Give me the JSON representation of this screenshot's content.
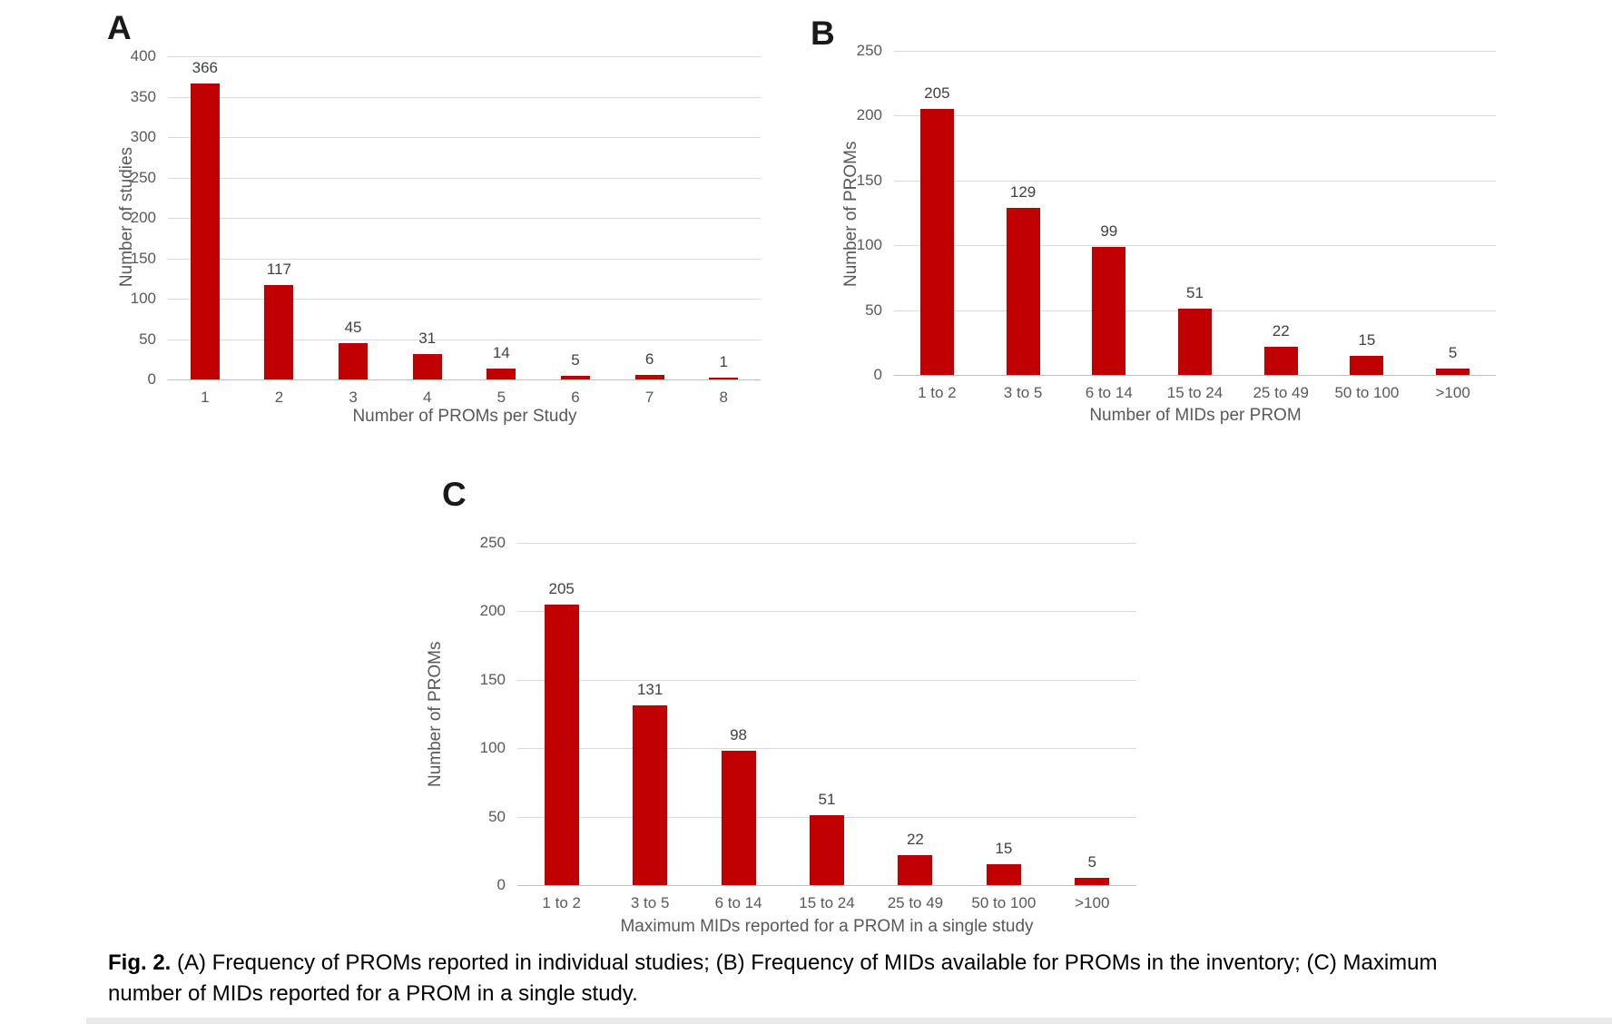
{
  "caption": {
    "label": "Fig. 2.",
    "text": "(A) Frequency of PROMs reported in individual studies; (B) Frequency of MIDs available for PROMs in the inventory; (C) Maximum number of MIDs reported for a PROM in a single study."
  },
  "colors": {
    "bar": "#c00000",
    "gridline": "#d9d9d9",
    "zero_line": "#bfbfbf",
    "axis_text": "#595959",
    "value_label": "#404040"
  },
  "chart_data": [
    {
      "type": "bar",
      "panel_label": "A",
      "xlabel": "Number of PROMs per Study",
      "ylabel": "Number of studies",
      "categories": [
        "1",
        "2",
        "3",
        "4",
        "5",
        "6",
        "7",
        "8"
      ],
      "values": [
        366,
        117,
        45,
        31,
        14,
        5,
        6,
        1
      ],
      "ylim": [
        0,
        400
      ],
      "yticks": [
        0,
        50,
        100,
        150,
        200,
        250,
        300,
        350,
        400
      ],
      "grid": true,
      "legend": "none",
      "bar_color": "#c00000"
    },
    {
      "type": "bar",
      "panel_label": "B",
      "xlabel": "Number of MIDs per PROM",
      "ylabel": "Number of PROMs",
      "categories": [
        "1 to 2",
        "3 to 5",
        "6 to 14",
        "15 to 24",
        "25 to 49",
        "50 to 100",
        ">100"
      ],
      "values": [
        205,
        129,
        99,
        51,
        22,
        15,
        5
      ],
      "ylim": [
        0,
        250
      ],
      "yticks": [
        0,
        50,
        100,
        150,
        200,
        250
      ],
      "grid": true,
      "legend": "none",
      "bar_color": "#c00000"
    },
    {
      "type": "bar",
      "panel_label": "C",
      "xlabel": "Maximum MIDs reported for a PROM in a single study",
      "ylabel": "Number of PROMs",
      "categories": [
        "1 to 2",
        "3 to 5",
        "6 to 14",
        "15 to 24",
        "25 to 49",
        "50 to 100",
        ">100"
      ],
      "values": [
        205,
        131,
        98,
        51,
        22,
        15,
        5
      ],
      "ylim": [
        0,
        250
      ],
      "yticks": [
        0,
        50,
        100,
        150,
        200,
        250
      ],
      "grid": true,
      "legend": "none",
      "bar_color": "#c00000"
    }
  ]
}
